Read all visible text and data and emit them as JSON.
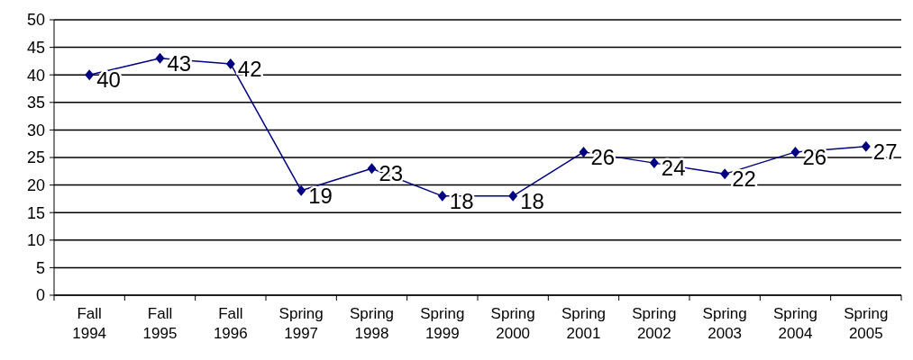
{
  "chart_data": {
    "type": "line",
    "categories": [
      "Fall 1994",
      "Fall 1995",
      "Fall 1996",
      "Spring 1997",
      "Spring 1998",
      "Spring 1999",
      "Spring 2000",
      "Spring 2001",
      "Spring 2002",
      "Spring 2003",
      "Spring 2004",
      "Spring 2005"
    ],
    "series": [
      {
        "color": "#000080",
        "values": [
          40,
          43,
          42,
          19,
          23,
          18,
          18,
          26,
          24,
          22,
          26,
          27
        ]
      }
    ],
    "ylim": [
      0,
      50
    ],
    "yticks": [
      0,
      5,
      10,
      15,
      20,
      25,
      30,
      35,
      40,
      45,
      50
    ],
    "grid": "y",
    "marker": "diamond",
    "line_style": "solid",
    "data_labels": true
  }
}
